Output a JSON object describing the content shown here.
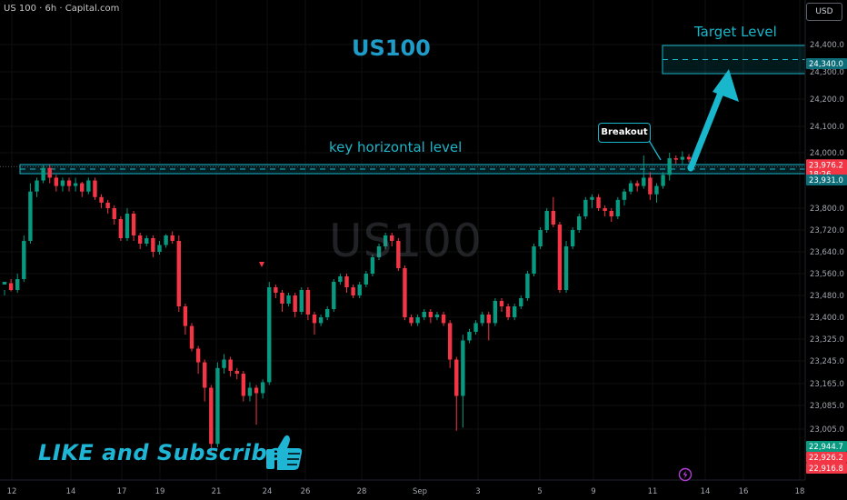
{
  "header": {
    "symbol_info": "US 100 · 6h · Capital.com",
    "currency_button": "USD"
  },
  "title": "US100",
  "watermark": "US100",
  "annotations": {
    "target_level": "Target Level",
    "key_level": "key horizontal level",
    "breakout": "Breakout",
    "cta": "LIKE and Subscribe"
  },
  "icons": {
    "thumb": "thumbs-up-icon",
    "bolt": "lightning-icon",
    "marker": "arrow-down-marker-icon"
  },
  "colors": {
    "up": "#089981",
    "down": "#f23645",
    "accent": "#18b7cc",
    "background": "#000000"
  },
  "chart_data": {
    "type": "candlestick",
    "y_axis": {
      "ticks": [
        "24,400.0",
        "24,300.0",
        "24,200.0",
        "24,100.0",
        "24,000.0",
        "23,800.0",
        "23,720.0",
        "23,640.0",
        "23,560.0",
        "23,480.0",
        "23,400.0",
        "23,325.0",
        "23,245.0",
        "23,165.0",
        "23,085.0",
        "23,005.0"
      ],
      "scale": "log"
    },
    "x_axis": {
      "ticks": [
        "12",
        "14",
        "17",
        "19",
        "21",
        "24",
        "26",
        "28",
        "Sep",
        "3",
        "5",
        "9",
        "11",
        "14",
        "16",
        "18"
      ]
    },
    "price_labels": [
      {
        "text": "24,340.0",
        "kind": "target"
      },
      {
        "text": "23,976.2",
        "kind": "last"
      },
      {
        "text": "18:26",
        "kind": "countdown"
      },
      {
        "text": "23,931.0",
        "kind": "level"
      },
      {
        "text": "22,944.7",
        "kind": "up"
      },
      {
        "text": "22,926.2",
        "kind": "down"
      },
      {
        "text": "22,916.8",
        "kind": "down"
      }
    ],
    "levels": {
      "key_horizontal_level": 23931.0,
      "target_level": 24340.0,
      "last_price": 23976.2
    },
    "candles": [
      [
        23520,
        23530,
        23500,
        23480
      ],
      [
        23525,
        23500,
        23540,
        23495
      ],
      [
        23500,
        23540,
        23560,
        23490
      ],
      [
        23540,
        23680,
        23700,
        23530
      ],
      [
        23680,
        23860,
        23890,
        23670
      ],
      [
        23860,
        23900,
        23910,
        23840
      ],
      [
        23900,
        23945,
        23955,
        23890
      ],
      [
        23945,
        23910,
        23955,
        23890
      ],
      [
        23910,
        23880,
        23920,
        23860
      ],
      [
        23880,
        23900,
        23910,
        23860
      ],
      [
        23900,
        23880,
        23910,
        23860
      ],
      [
        23880,
        23890,
        23910,
        23860
      ],
      [
        23890,
        23860,
        23895,
        23840
      ],
      [
        23860,
        23900,
        23910,
        23850
      ],
      [
        23900,
        23840,
        23910,
        23830
      ],
      [
        23840,
        23820,
        23850,
        23800
      ],
      [
        23820,
        23800,
        23830,
        23780
      ],
      [
        23800,
        23760,
        23810,
        23740
      ],
      [
        23760,
        23690,
        23770,
        23680
      ],
      [
        23690,
        23780,
        23800,
        23680
      ],
      [
        23780,
        23700,
        23790,
        23680
      ],
      [
        23700,
        23670,
        23710,
        23650
      ],
      [
        23670,
        23690,
        23700,
        23660
      ],
      [
        23690,
        23640,
        23700,
        23620
      ],
      [
        23640,
        23665,
        23680,
        23630
      ],
      [
        23665,
        23700,
        23705,
        23655
      ],
      [
        23700,
        23680,
        23715,
        23670
      ],
      [
        23680,
        23440,
        23700,
        23420
      ],
      [
        23440,
        23370,
        23450,
        23340
      ],
      [
        23370,
        23290,
        23380,
        23280
      ],
      [
        23290,
        23240,
        23300,
        23200
      ],
      [
        23240,
        23150,
        23250,
        23100
      ],
      [
        23150,
        22960,
        23160,
        22930
      ],
      [
        22960,
        23220,
        23240,
        22950
      ],
      [
        23220,
        23250,
        23270,
        23200
      ],
      [
        23250,
        23210,
        23260,
        23190
      ],
      [
        23210,
        23200,
        23220,
        23180
      ],
      [
        23200,
        23120,
        23210,
        23100
      ],
      [
        23120,
        23150,
        23170,
        23100
      ],
      [
        23150,
        23130,
        23160,
        23020
      ],
      [
        23130,
        23170,
        23180,
        23110
      ],
      [
        23170,
        23510,
        23530,
        23160
      ],
      [
        23510,
        23490,
        23520,
        23470
      ],
      [
        23490,
        23450,
        23500,
        23420
      ],
      [
        23450,
        23480,
        23490,
        23440
      ],
      [
        23480,
        23420,
        23490,
        23400
      ],
      [
        23420,
        23500,
        23510,
        23410
      ],
      [
        23500,
        23410,
        23510,
        23390
      ],
      [
        23410,
        23380,
        23420,
        23340
      ],
      [
        23380,
        23400,
        23410,
        23370
      ],
      [
        23400,
        23430,
        23440,
        23390
      ],
      [
        23430,
        23530,
        23540,
        23420
      ],
      [
        23530,
        23550,
        23560,
        23520
      ],
      [
        23550,
        23510,
        23560,
        23490
      ],
      [
        23510,
        23480,
        23520,
        23470
      ],
      [
        23480,
        23520,
        23530,
        23470
      ],
      [
        23520,
        23560,
        23570,
        23510
      ],
      [
        23560,
        23620,
        23630,
        23550
      ],
      [
        23620,
        23660,
        23670,
        23610
      ],
      [
        23660,
        23700,
        23710,
        23650
      ],
      [
        23700,
        23680,
        23710,
        23660
      ],
      [
        23680,
        23580,
        23690,
        23570
      ],
      [
        23580,
        23400,
        23590,
        23390
      ],
      [
        23400,
        23380,
        23410,
        23370
      ],
      [
        23380,
        23400,
        23410,
        23370
      ],
      [
        23400,
        23420,
        23430,
        23390
      ],
      [
        23420,
        23400,
        23430,
        23380
      ],
      [
        23400,
        23410,
        23420,
        23390
      ],
      [
        23410,
        23380,
        23420,
        23370
      ],
      [
        23380,
        23250,
        23390,
        23220
      ],
      [
        23250,
        23120,
        23260,
        23000
      ],
      [
        23120,
        23320,
        23340,
        23010
      ],
      [
        23320,
        23350,
        23360,
        23310
      ],
      [
        23350,
        23380,
        23390,
        23340
      ],
      [
        23380,
        23410,
        23420,
        23370
      ],
      [
        23410,
        23380,
        23420,
        23320
      ],
      [
        23380,
        23460,
        23470,
        23370
      ],
      [
        23460,
        23440,
        23470,
        23420
      ],
      [
        23440,
        23400,
        23450,
        23390
      ],
      [
        23400,
        23440,
        23450,
        23390
      ],
      [
        23440,
        23470,
        23480,
        23430
      ],
      [
        23470,
        23560,
        23570,
        23460
      ],
      [
        23560,
        23660,
        23670,
        23550
      ],
      [
        23660,
        23720,
        23730,
        23650
      ],
      [
        23720,
        23790,
        23800,
        23710
      ],
      [
        23790,
        23740,
        23840,
        23730
      ],
      [
        23740,
        23500,
        23750,
        23490
      ],
      [
        23500,
        23660,
        23680,
        23490
      ],
      [
        23660,
        23720,
        23730,
        23650
      ],
      [
        23720,
        23770,
        23780,
        23710
      ],
      [
        23770,
        23830,
        23840,
        23760
      ],
      [
        23830,
        23840,
        23850,
        23800
      ],
      [
        23840,
        23800,
        23850,
        23790
      ],
      [
        23800,
        23790,
        23810,
        23770
      ],
      [
        23790,
        23770,
        23800,
        23750
      ],
      [
        23770,
        23830,
        23840,
        23760
      ],
      [
        23830,
        23860,
        23870,
        23810
      ],
      [
        23860,
        23890,
        23900,
        23850
      ],
      [
        23890,
        23880,
        23900,
        23860
      ],
      [
        23880,
        23910,
        23990,
        23870
      ],
      [
        23910,
        23850,
        23930,
        23830
      ],
      [
        23850,
        23880,
        23890,
        23820
      ],
      [
        23880,
        23920,
        23930,
        23870
      ],
      [
        23920,
        23980,
        24000,
        23900
      ],
      [
        23980,
        23975,
        23990,
        23960
      ],
      [
        23975,
        23985,
        24005,
        23960
      ],
      [
        23985,
        23976,
        23995,
        23965
      ]
    ]
  }
}
